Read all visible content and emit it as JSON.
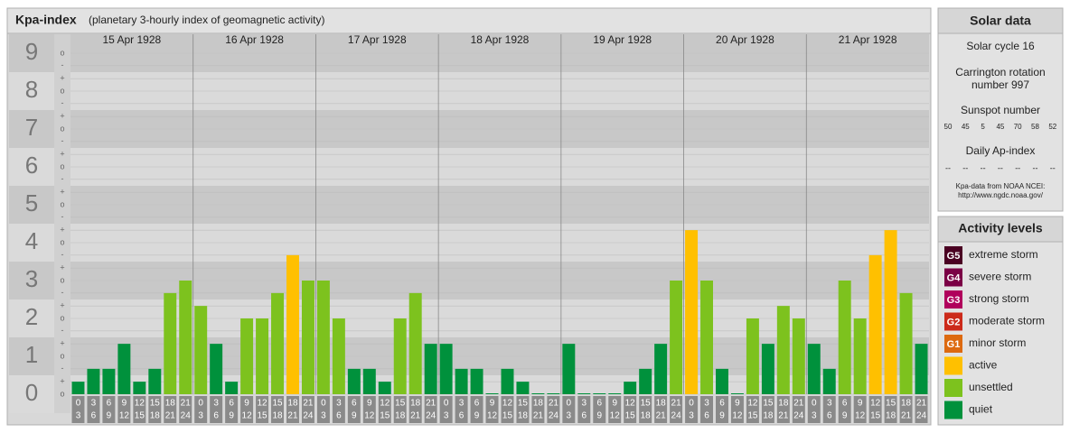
{
  "header": {
    "title": "Kpa-index",
    "subtitle": "(planetary 3-hourly index of geomagnetic activity)"
  },
  "chart_data": {
    "type": "bar",
    "ylim": [
      0,
      9.5
    ],
    "yticks": [
      0,
      1,
      2,
      3,
      4,
      5,
      6,
      7,
      8,
      9
    ],
    "minor_ticks": [
      {
        "value": 0,
        "label": "o"
      },
      {
        "value": 0.33,
        "label": "+"
      },
      {
        "value": 0.67,
        "label": "-"
      },
      {
        "value": 1,
        "label": "o"
      },
      {
        "value": 1.33,
        "label": "+"
      },
      {
        "value": 1.67,
        "label": "-"
      },
      {
        "value": 2,
        "label": "o"
      },
      {
        "value": 2.33,
        "label": "+"
      },
      {
        "value": 2.67,
        "label": "-"
      },
      {
        "value": 3,
        "label": "o"
      },
      {
        "value": 3.33,
        "label": "+"
      },
      {
        "value": 3.67,
        "label": "-"
      },
      {
        "value": 4,
        "label": "o"
      },
      {
        "value": 4.33,
        "label": "+"
      },
      {
        "value": 4.67,
        "label": "-"
      },
      {
        "value": 5,
        "label": "o"
      },
      {
        "value": 5.33,
        "label": "+"
      },
      {
        "value": 5.67,
        "label": "-"
      },
      {
        "value": 6,
        "label": "o"
      },
      {
        "value": 6.33,
        "label": "+"
      },
      {
        "value": 6.67,
        "label": "-"
      },
      {
        "value": 7,
        "label": "o"
      },
      {
        "value": 7.33,
        "label": "+"
      },
      {
        "value": 7.67,
        "label": "-"
      },
      {
        "value": 8,
        "label": "o"
      },
      {
        "value": 8.33,
        "label": "+"
      },
      {
        "value": 8.67,
        "label": "-"
      },
      {
        "value": 9,
        "label": "o"
      }
    ],
    "time_bins": [
      [
        "0",
        "3"
      ],
      [
        "3",
        "6"
      ],
      [
        "6",
        "9"
      ],
      [
        "9",
        "12"
      ],
      [
        "12",
        "15"
      ],
      [
        "15",
        "18"
      ],
      [
        "18",
        "21"
      ],
      [
        "21",
        "24"
      ]
    ],
    "days": [
      {
        "date": "15 Apr 1928",
        "values": [
          0.33,
          0.67,
          0.67,
          1.33,
          0.33,
          0.67,
          2.67,
          3
        ],
        "colors": [
          "#00913c",
          "#00913c",
          "#00913c",
          "#00913c",
          "#00913c",
          "#00913c",
          "#7dc21e",
          "#7dc21e"
        ]
      },
      {
        "date": "16 Apr 1928",
        "values": [
          2.33,
          1.33,
          0.33,
          2,
          2,
          2.67,
          3.67,
          3
        ],
        "colors": [
          "#7dc21e",
          "#00913c",
          "#00913c",
          "#7dc21e",
          "#7dc21e",
          "#7dc21e",
          "#ffc000",
          "#7dc21e"
        ]
      },
      {
        "date": "17 Apr 1928",
        "values": [
          3,
          2,
          0.67,
          0.67,
          0.33,
          2,
          2.67,
          1.33
        ],
        "colors": [
          "#7dc21e",
          "#7dc21e",
          "#00913c",
          "#00913c",
          "#00913c",
          "#7dc21e",
          "#7dc21e",
          "#00913c"
        ]
      },
      {
        "date": "18 Apr 1928",
        "values": [
          1.33,
          0.67,
          0.67,
          0,
          0.67,
          0.33,
          0,
          0
        ],
        "colors": [
          "#00913c",
          "#00913c",
          "#00913c",
          "#00913c",
          "#00913c",
          "#00913c",
          "#00913c",
          "#00913c"
        ]
      },
      {
        "date": "19 Apr 1928",
        "values": [
          1.33,
          0,
          0,
          0,
          0.33,
          0.67,
          1.33,
          3
        ],
        "colors": [
          "#00913c",
          "#00913c",
          "#00913c",
          "#00913c",
          "#00913c",
          "#00913c",
          "#00913c",
          "#7dc21e"
        ]
      },
      {
        "date": "20 Apr 1928",
        "values": [
          4.33,
          3,
          0.67,
          0,
          2,
          1.33,
          2.33,
          2
        ],
        "colors": [
          "#ffc000",
          "#7dc21e",
          "#00913c",
          "#00913c",
          "#7dc21e",
          "#00913c",
          "#7dc21e",
          "#7dc21e"
        ]
      },
      {
        "date": "21 Apr 1928",
        "values": [
          1.33,
          0.67,
          3,
          2,
          3.67,
          4.33,
          2.67,
          1.33
        ],
        "colors": [
          "#00913c",
          "#00913c",
          "#7dc21e",
          "#7dc21e",
          "#ffc000",
          "#ffc000",
          "#7dc21e",
          "#00913c"
        ]
      }
    ]
  },
  "solar": {
    "title": "Solar data",
    "cycle": "Solar cycle 16",
    "carrington": [
      "Carrington rotation",
      "number 997"
    ],
    "sunspot_title": "Sunspot number",
    "sunspots": [
      50,
      45,
      5,
      45,
      70,
      58,
      52
    ],
    "ap_title": "Daily Ap-index",
    "ap": [
      "--",
      "--",
      "--",
      "--",
      "--",
      "--",
      "--"
    ],
    "source": [
      "Kpa-data from NOAA NCEI:",
      "http://www.ngdc.noaa.gov/"
    ]
  },
  "levels": {
    "title": "Activity levels",
    "items": [
      {
        "code": "G5",
        "name": "extreme storm",
        "color": "#4a0022"
      },
      {
        "code": "G4",
        "name": "severe storm",
        "color": "#7a0045"
      },
      {
        "code": "G3",
        "name": "strong storm",
        "color": "#b0005c"
      },
      {
        "code": "G2",
        "name": "moderate storm",
        "color": "#cc2a1a"
      },
      {
        "code": "G1",
        "name": "minor storm",
        "color": "#dd6a10"
      },
      {
        "name": "active",
        "color": "#ffc000"
      },
      {
        "name": "unsettled",
        "color": "#7dc21e"
      },
      {
        "name": "quiet",
        "color": "#00913c"
      }
    ]
  }
}
